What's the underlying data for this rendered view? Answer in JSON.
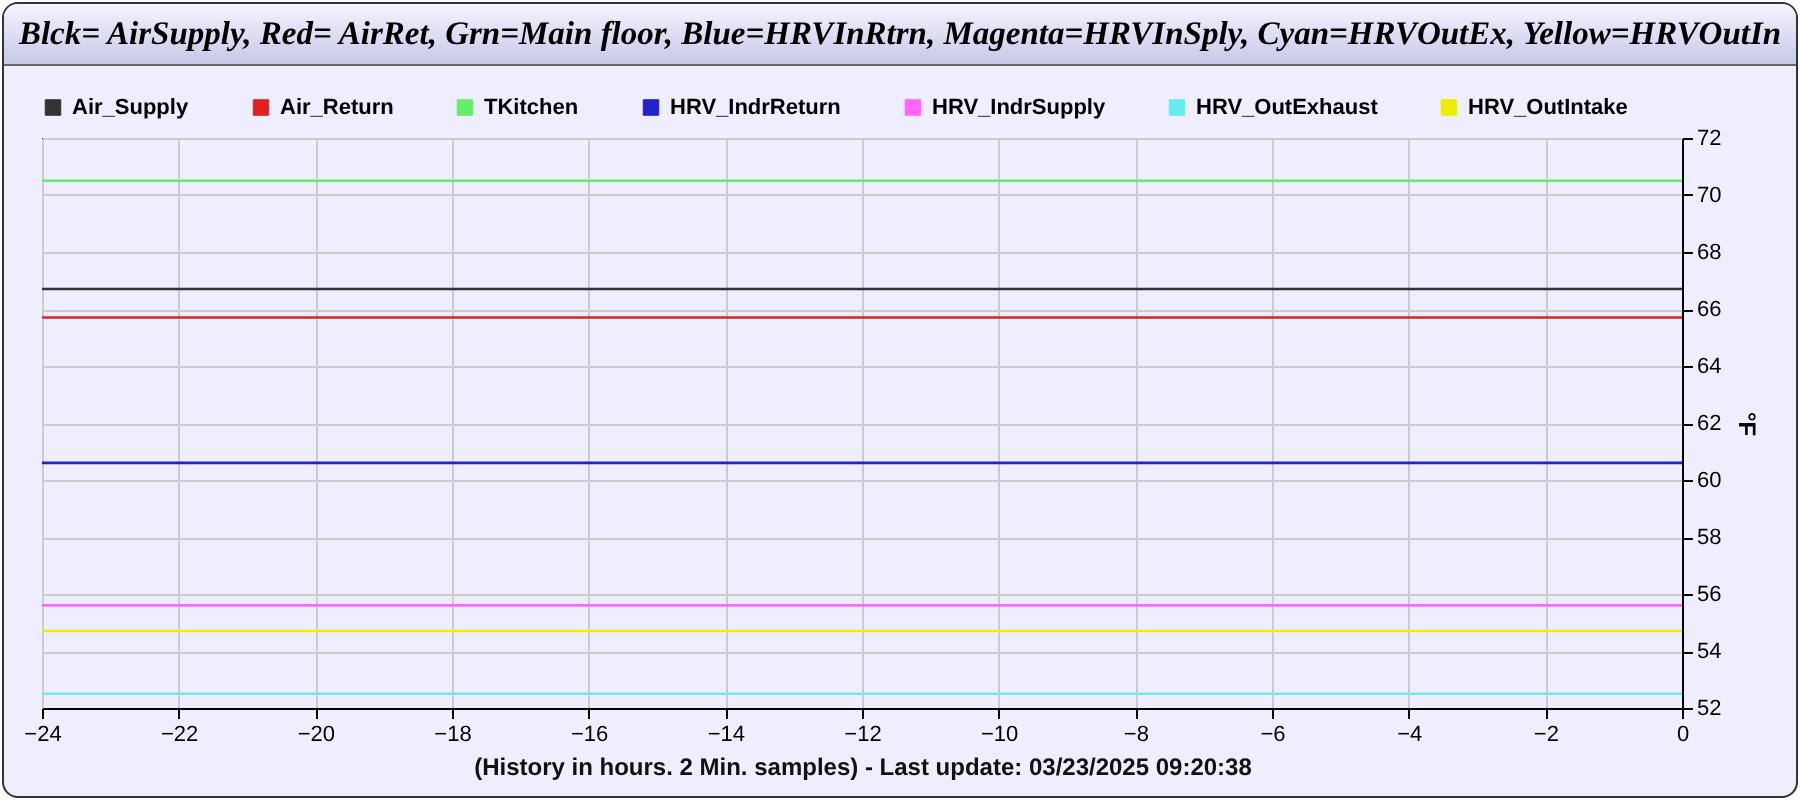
{
  "chart_data": {
    "type": "line",
    "title": "Blck= AirSupply, Red= AirRet, Grn=Main floor, Blue=HRVInRtrn, Magenta=HRVInSply, Cyan=HRVOutEx, Yellow=HRVOutIn",
    "xlabel": "(History in hours. 2 Min. samples) - Last update: 03/23/2025 09:20:38",
    "ylabel": "°F",
    "x": [
      -24,
      0
    ],
    "series": [
      {
        "name": "Air_Supply",
        "color": "#333333",
        "values": [
          66.7,
          66.7
        ]
      },
      {
        "name": "Air_Return",
        "color": "#dd2222",
        "values": [
          65.7,
          65.7
        ]
      },
      {
        "name": "TKitchen",
        "color": "#66ee66",
        "values": [
          70.5,
          70.5
        ]
      },
      {
        "name": "HRV_IndrReturn",
        "color": "#2222cc",
        "values": [
          60.6,
          60.6
        ]
      },
      {
        "name": "HRV_IndrSupply",
        "color": "#ff66ff",
        "values": [
          55.6,
          55.6
        ]
      },
      {
        "name": "HRV_OutExhaust",
        "color": "#66eeee",
        "values": [
          52.5,
          52.5
        ]
      },
      {
        "name": "HRV_OutIntake",
        "color": "#eeee00",
        "values": [
          54.7,
          54.7
        ]
      }
    ],
    "xlim": [
      -24,
      0
    ],
    "xticks": [
      -24,
      -22,
      -20,
      -18,
      -16,
      -14,
      -12,
      -10,
      -8,
      -6,
      -4,
      -2,
      0
    ],
    "ylim": [
      52,
      72
    ],
    "yticks": [
      52,
      54,
      56,
      58,
      60,
      62,
      64,
      66,
      68,
      70,
      72
    ],
    "grid": true,
    "legend": "top",
    "marker": "none",
    "line_style": "solid"
  }
}
